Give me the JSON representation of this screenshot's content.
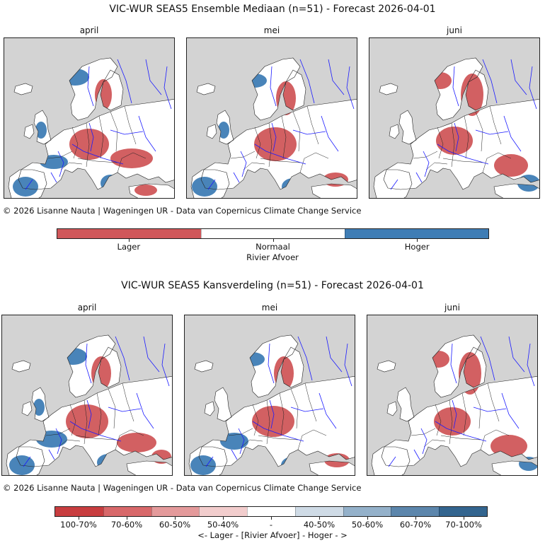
{
  "top": {
    "title": "VIC-WUR SEAS5 Ensemble Mediaan (n=51) - Forecast 2026-04-01",
    "months": [
      "april",
      "mei",
      "juni"
    ],
    "credit": "© 2026 Lisanne Nauta | Wageningen UR - Data van Copernicus Climate Change Service",
    "legend": {
      "categories": [
        "Lager",
        "Normaal",
        "Hoger"
      ],
      "colors": [
        "#d0575a",
        "#ffffff",
        "#3f7db5"
      ],
      "title": "Rivier Afvoer"
    }
  },
  "bottom": {
    "title": "VIC-WUR SEAS5 Kansverdeling (n=51) - Forecast 2026-04-01",
    "months": [
      "april",
      "mei",
      "juni"
    ],
    "credit": "© 2026 Lisanne Nauta | Wageningen UR - Data van Copernicus Climate Change Service",
    "legend": {
      "categories": [
        "100-70%",
        "70-60%",
        "60-50%",
        "50-40%",
        "-",
        "40-50%",
        "50-60%",
        "60-70%",
        "70-100%"
      ],
      "colors": [
        "#c83d3f",
        "#d8686a",
        "#e49a9b",
        "#f2cdcd",
        "#ffffff",
        "#cfdbe6",
        "#94b1ca",
        "#5c86ac",
        "#33658f"
      ],
      "title": "<- Lager - [Rivier Afvoer] - Hoger - >"
    }
  },
  "map_colors": {
    "background": "#d3d3d3",
    "lower": "#d0575a",
    "higher": "#3f7db5",
    "normal": "#ffffff",
    "rivers": "#1a1aff",
    "borders": "#222222"
  }
}
